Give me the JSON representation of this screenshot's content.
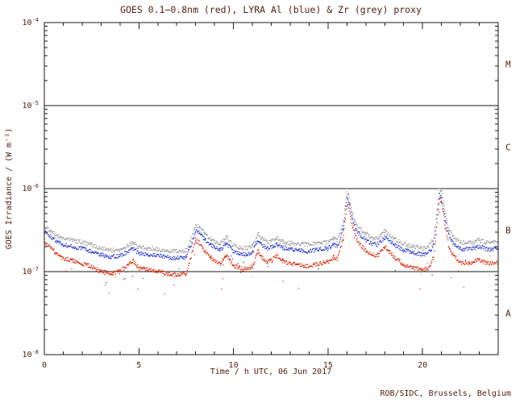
{
  "credit": "ROB/SIDC, Brussels, Belgium",
  "colors": {
    "text": "#4f1e0f",
    "axis": "#1a1a1a"
  },
  "chart_data": {
    "type": "scatter",
    "title": "GOES 0.1−0.8nm (red), LYRA Al (blue) & Zr (grey) proxy",
    "xlabel": "Time / h UTC, 06 Jun 2017",
    "ylabel": "GOES Irradiance / (W m⁻²)",
    "xlim": [
      0,
      24
    ],
    "ylim_log10": [
      -8,
      -4
    ],
    "x_ticks": [
      0,
      5,
      10,
      15,
      20
    ],
    "y_tick_exponents": [
      -4,
      -5,
      -6,
      -7,
      -8
    ],
    "flare_class_lines": [
      1e-05,
      1e-06,
      1e-07
    ],
    "class_bands": [
      {
        "label": "M",
        "range": [
          1e-05,
          0.0001
        ]
      },
      {
        "label": "C",
        "range": [
          1e-06,
          1e-05
        ]
      },
      {
        "label": "B",
        "range": [
          1e-07,
          1e-06
        ]
      },
      {
        "label": "A",
        "range": [
          1e-08,
          1e-07
        ]
      }
    ],
    "x_hours": [
      0,
      0.3,
      0.7,
      1,
      1.5,
      2,
      2.5,
      3,
      3.5,
      4,
      4.3,
      4.7,
      5,
      5.5,
      6,
      6.5,
      7,
      7.5,
      7.8,
      8,
      8.2,
      8.5,
      8.8,
      9,
      9.3,
      9.6,
      9.8,
      10,
      10.3,
      10.7,
      11,
      11.3,
      11.5,
      11.8,
      12,
      12.3,
      12.6,
      13,
      13.5,
      14,
      14.5,
      15,
      15.3,
      15.5,
      15.8,
      16,
      16.1,
      16.3,
      16.5,
      16.8,
      17,
      17.3,
      17.6,
      18,
      18.2,
      18.5,
      19,
      19.5,
      20,
      20.3,
      20.6,
      20.9,
      21,
      21.2,
      21.4,
      21.6,
      22,
      22.5,
      23,
      23.3,
      23.6,
      24
    ],
    "series": [
      {
        "name": "GOES 0.1-0.8nm",
        "color": "#dd2200",
        "values": [
          2.3e-07,
          2e-07,
          1.6e-07,
          1.45e-07,
          1.35e-07,
          1.25e-07,
          1.15e-07,
          1e-07,
          9.5e-08,
          1e-07,
          1.15e-07,
          1.35e-07,
          1.1e-07,
          1.05e-07,
          1e-07,
          9.5e-08,
          9e-08,
          9.5e-08,
          1.6e-07,
          2.4e-07,
          2.2e-07,
          1.8e-07,
          1.5e-07,
          1.35e-07,
          1.25e-07,
          1.6e-07,
          1.4e-07,
          1.2e-07,
          1.1e-07,
          1.05e-07,
          1.15e-07,
          1.75e-07,
          1.5e-07,
          1.3e-07,
          1.35e-07,
          1.55e-07,
          1.35e-07,
          1.25e-07,
          1.2e-07,
          1.15e-07,
          1.25e-07,
          1.3e-07,
          1.5e-07,
          1.4e-07,
          2.5e-07,
          6.5e-07,
          6e-07,
          3.5e-07,
          2.5e-07,
          2e-07,
          1.8e-07,
          1.6e-07,
          1.55e-07,
          2e-07,
          1.8e-07,
          1.5e-07,
          1.2e-07,
          1.1e-07,
          1.05e-07,
          1.1e-07,
          1.5e-07,
          7.5e-07,
          7e-07,
          3.5e-07,
          2e-07,
          1.6e-07,
          1.3e-07,
          1.25e-07,
          1.4e-07,
          1.3e-07,
          1.25e-07,
          1.3e-07
        ]
      },
      {
        "name": "LYRA Al proxy",
        "color": "#2233cc",
        "values": [
          3e-07,
          2.7e-07,
          2.3e-07,
          2.1e-07,
          2e-07,
          1.9e-07,
          1.75e-07,
          1.6e-07,
          1.5e-07,
          1.55e-07,
          1.7e-07,
          1.9e-07,
          1.65e-07,
          1.6e-07,
          1.55e-07,
          1.5e-07,
          1.45e-07,
          1.5e-07,
          2.2e-07,
          3.1e-07,
          2.9e-07,
          2.4e-07,
          2.1e-07,
          1.95e-07,
          1.8e-07,
          2.2e-07,
          2e-07,
          1.75e-07,
          1.65e-07,
          1.6e-07,
          1.7e-07,
          2.4e-07,
          2.1e-07,
          1.9e-07,
          1.95e-07,
          2.15e-07,
          1.95e-07,
          1.85e-07,
          1.8e-07,
          1.75e-07,
          1.85e-07,
          1.9e-07,
          2.1e-07,
          2e-07,
          3.2e-07,
          7.5e-07,
          7e-07,
          4.2e-07,
          3.1e-07,
          2.6e-07,
          2.4e-07,
          2.2e-07,
          2.1e-07,
          2.6e-07,
          2.4e-07,
          2.1e-07,
          1.8e-07,
          1.7e-07,
          1.6e-07,
          1.65e-07,
          2.1e-07,
          8.3e-07,
          7.8e-07,
          4.2e-07,
          2.7e-07,
          2.2e-07,
          1.9e-07,
          1.85e-07,
          2e-07,
          1.9e-07,
          1.85e-07,
          1.9e-07
        ]
      },
      {
        "name": "LYRA Zr proxy",
        "color": "#9a9a9a",
        "values": [
          3.5e-07,
          3.1e-07,
          2.7e-07,
          2.5e-07,
          2.4e-07,
          2.25e-07,
          2.1e-07,
          1.9e-07,
          1.8e-07,
          1.85e-07,
          2e-07,
          2.25e-07,
          1.95e-07,
          1.9e-07,
          1.85e-07,
          1.8e-07,
          1.75e-07,
          1.8e-07,
          2.6e-07,
          3.6e-07,
          3.4e-07,
          2.85e-07,
          2.5e-07,
          2.3e-07,
          2.15e-07,
          2.6e-07,
          2.4e-07,
          2.1e-07,
          1.95e-07,
          1.9e-07,
          2e-07,
          2.85e-07,
          2.5e-07,
          2.25e-07,
          2.3e-07,
          2.55e-07,
          2.3e-07,
          2.2e-07,
          2.15e-07,
          2.1e-07,
          2.2e-07,
          2.25e-07,
          2.5e-07,
          2.4e-07,
          3.8e-07,
          8.8e-07,
          8.2e-07,
          5e-07,
          3.7e-07,
          3.1e-07,
          2.85e-07,
          2.6e-07,
          2.5e-07,
          3.1e-07,
          2.85e-07,
          2.5e-07,
          2.15e-07,
          2e-07,
          1.9e-07,
          1.95e-07,
          2.5e-07,
          9.8e-07,
          9.2e-07,
          5e-07,
          3.2e-07,
          2.6e-07,
          2.25e-07,
          2.2e-07,
          2.4e-07,
          2.25e-07,
          2.2e-07,
          2.25e-07
        ]
      }
    ]
  }
}
